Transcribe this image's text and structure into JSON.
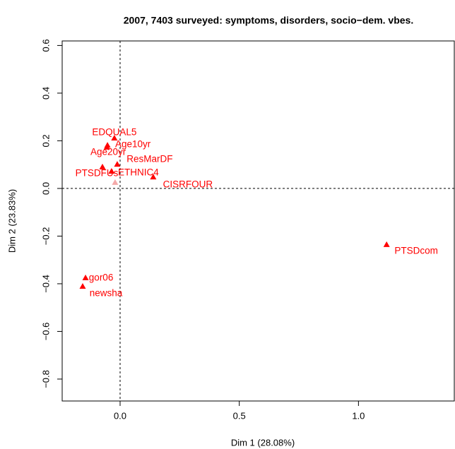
{
  "chart_data": {
    "type": "scatter",
    "title": "2007, 7403 surveyed: symptoms, disorders, socio−dem. vbes.",
    "x_label": "Dim 1 (28.08%)",
    "y_label": "Dim 2 (23.83%)",
    "labels": [
      "EDQUAL5",
      "Age10yr",
      "Age20yr",
      "ResMarDF",
      "PTSDFUs",
      "ETHNIC4",
      "CISRFOUR",
      null,
      "PTSDcom",
      "gor06",
      "newsha"
    ],
    "x": [
      -0.024,
      -0.053,
      -0.056,
      -0.012,
      -0.074,
      -0.036,
      0.139,
      -0.021,
      1.118,
      -0.145,
      -0.157
    ],
    "values": [
      0.21,
      0.18,
      0.172,
      0.1,
      0.089,
      0.071,
      0.047,
      0.024,
      -0.237,
      -0.376,
      -0.412
    ],
    "colors": [
      "#ff0000",
      "#ff0000",
      "#ff0000",
      "#ff0000",
      "#ff0000",
      "#ff0000",
      "#ff0000",
      "#f4a9a9",
      "#ff0000",
      "#ff0000",
      "#ff0000"
    ],
    "xlim": [
      -0.243,
      1.402
    ],
    "ylim": [
      -0.892,
      0.619
    ],
    "xticks": [
      {
        "value": 0,
        "label": "0.0"
      },
      0.5,
      {
        "value": 1,
        "label": "1.0"
      }
    ],
    "yticks": [
      {
        "value": -0.8,
        "label": "−0.8"
      },
      {
        "value": -0.6,
        "label": "−0.6"
      },
      {
        "value": -0.4,
        "label": "−0.4"
      },
      {
        "value": -0.2,
        "label": "−0.2"
      },
      {
        "value": 0,
        "label": "0.0"
      },
      0.2,
      0.4,
      0.6
    ]
  }
}
